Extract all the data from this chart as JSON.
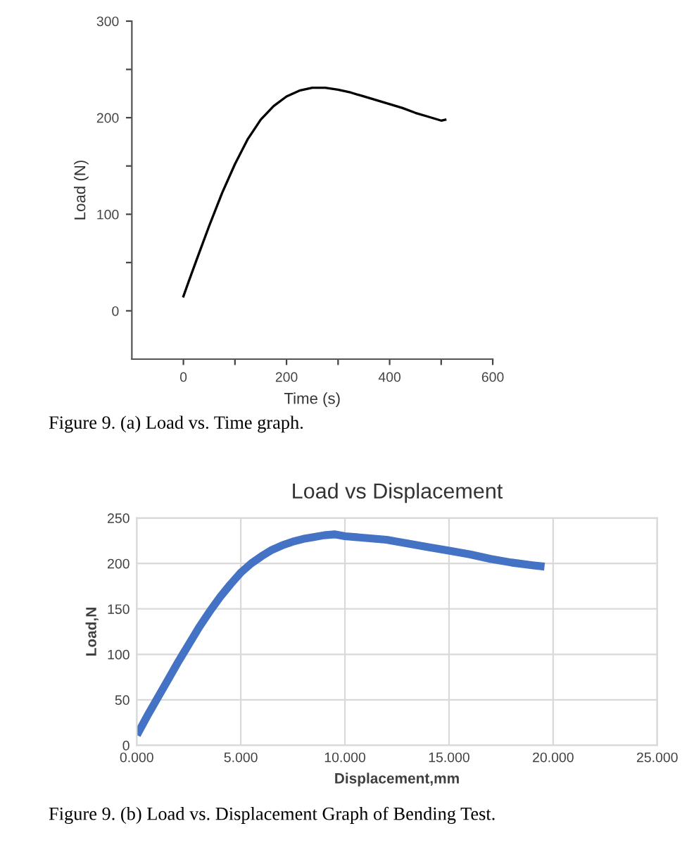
{
  "chart_data": [
    {
      "type": "line",
      "xlabel": "Time (s)",
      "ylabel": "Load (N)",
      "xlim": [
        -100,
        600
      ],
      "ylim": [
        -50,
        300
      ],
      "xticks": [
        0,
        {
          "value": 100,
          "label": null
        },
        200,
        {
          "value": 300,
          "label": null
        },
        400,
        {
          "value": 500,
          "label": null
        },
        600
      ],
      "yticks": [
        0,
        {
          "value": 50,
          "label": null
        },
        100,
        {
          "value": 150,
          "label": null
        },
        200,
        {
          "value": 250,
          "label": null
        },
        300
      ],
      "grid": false,
      "line_style": "solid",
      "marker": "none",
      "x": [
        0,
        10,
        25,
        50,
        75,
        100,
        125,
        150,
        175,
        200,
        225,
        250,
        275,
        300,
        325,
        350,
        375,
        400,
        425,
        450,
        475,
        500,
        508
      ],
      "series": [
        {
          "color": "#000000",
          "values": [
            15,
            30,
            52,
            88,
            122,
            152,
            178,
            198,
            212,
            222,
            228,
            231,
            231,
            229,
            226,
            222,
            218,
            214,
            210,
            205,
            201,
            197,
            198
          ]
        }
      ],
      "annotations": [
        "Figure 9. (a) Load vs. Time graph."
      ]
    },
    {
      "type": "line",
      "title": "Load vs Displacement",
      "xlabel": "Displacement,mm",
      "ylabel": "Load,N",
      "xlim": [
        0,
        25
      ],
      "ylim": [
        0,
        250
      ],
      "xticks": [
        {
          "value": 0,
          "label": "0.000"
        },
        {
          "value": 5,
          "label": "5.000"
        },
        {
          "value": 10,
          "label": "10.000"
        },
        {
          "value": 15,
          "label": "15.000"
        },
        {
          "value": 20,
          "label": "20.000"
        },
        {
          "value": 25,
          "label": "25.000"
        }
      ],
      "yticks": [
        0,
        50,
        100,
        150,
        200,
        250
      ],
      "grid": true,
      "line_style": "solid",
      "marker": "none",
      "x": [
        0.1,
        0.5,
        1,
        1.5,
        2,
        2.5,
        3,
        3.5,
        4,
        4.5,
        5,
        5.5,
        6,
        6.5,
        7,
        7.5,
        8,
        8.5,
        9,
        9.5,
        10,
        11,
        12,
        13,
        14,
        15,
        16,
        17,
        18,
        19,
        19.4
      ],
      "series": [
        {
          "color": "#4472c4",
          "values": [
            15,
            32,
            52,
            72,
            92,
            111,
            130,
            147,
            163,
            177,
            190,
            200,
            208,
            215,
            220,
            224,
            227,
            229,
            231,
            232,
            230,
            228,
            226,
            222,
            218,
            214,
            210,
            205,
            201,
            198,
            197
          ]
        }
      ],
      "annotations": [
        "Figure 9. (b) Load vs. Displacement Graph of Bending Test."
      ]
    }
  ]
}
